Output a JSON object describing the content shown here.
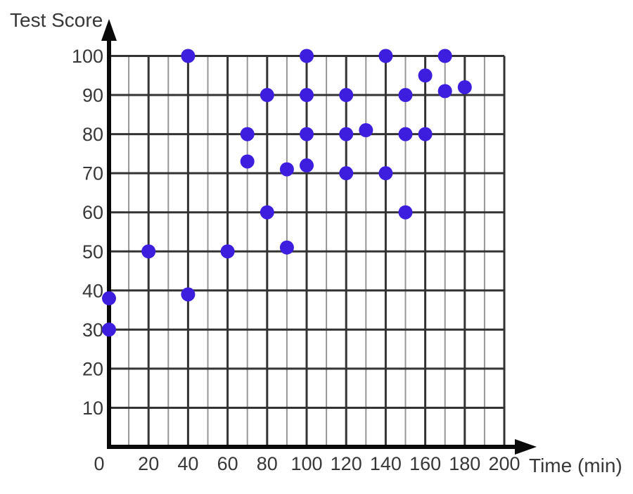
{
  "chart_data": {
    "type": "scatter",
    "title": "",
    "xlabel": "Time (min)",
    "ylabel": "Test Score",
    "xlim": [
      0,
      200
    ],
    "ylim": [
      0,
      100
    ],
    "x_major_step": 20,
    "x_minor_step": 10,
    "y_major_step": 10,
    "x_ticks": [
      0,
      20,
      40,
      60,
      80,
      100,
      120,
      140,
      160,
      180,
      200
    ],
    "y_ticks": [
      10,
      20,
      30,
      40,
      50,
      60,
      70,
      80,
      90,
      100
    ],
    "grid": true,
    "legend_position": "none",
    "points": [
      [
        0,
        30
      ],
      [
        0,
        38
      ],
      [
        20,
        50
      ],
      [
        40,
        39
      ],
      [
        40,
        100
      ],
      [
        60,
        50
      ],
      [
        70,
        73
      ],
      [
        70,
        80
      ],
      [
        80,
        60
      ],
      [
        80,
        90
      ],
      [
        90,
        51
      ],
      [
        90,
        71
      ],
      [
        100,
        72
      ],
      [
        100,
        80
      ],
      [
        100,
        90
      ],
      [
        100,
        100
      ],
      [
        120,
        70
      ],
      [
        120,
        80
      ],
      [
        120,
        90
      ],
      [
        130,
        81
      ],
      [
        140,
        70
      ],
      [
        140,
        100
      ],
      [
        150,
        60
      ],
      [
        150,
        80
      ],
      [
        150,
        90
      ],
      [
        160,
        80
      ],
      [
        160,
        95
      ],
      [
        170,
        91
      ],
      [
        170,
        100
      ],
      [
        180,
        92
      ]
    ],
    "colors": {
      "point": "#3e1ede",
      "major_grid": "#333333",
      "minor_grid": "#969696",
      "axis": "#0a0a0a",
      "text": "#383838"
    }
  }
}
